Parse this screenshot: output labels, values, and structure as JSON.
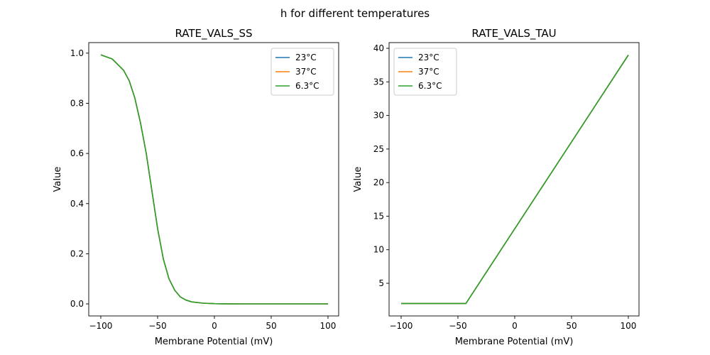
{
  "chart_data": {
    "suptitle": "h for different temperatures",
    "charts": [
      {
        "type": "line",
        "title": "RATE_VALS_SS",
        "xlabel": "Membrane Potential (mV)",
        "ylabel": "Value",
        "xlim": [
          -110.6,
          109.4
        ],
        "ylim": [
          -0.048,
          1.042
        ],
        "xticks": [
          -100,
          -50,
          0,
          50,
          100
        ],
        "yticks": [
          0.0,
          0.2,
          0.4,
          0.6,
          0.8,
          1.0
        ],
        "ytick_labels": [
          "0.0",
          "0.2",
          "0.4",
          "0.6",
          "0.8",
          "1.0"
        ],
        "legend": "top-right",
        "x": [
          -100,
          -90,
          -80,
          -75,
          -70,
          -65,
          -60,
          -55,
          -50,
          -45,
          -40,
          -35,
          -30,
          -25,
          -20,
          -10,
          0,
          10,
          25,
          50,
          100
        ],
        "series": [
          {
            "name": "23°C",
            "color": "#1f77b4",
            "values": [
              0.993,
              0.977,
              0.932,
              0.89,
              0.82,
              0.72,
              0.6,
              0.45,
              0.3,
              0.18,
              0.1,
              0.055,
              0.028,
              0.015,
              0.008,
              0.003,
              0.001,
              0.0004,
              0.0001,
              0,
              0
            ]
          },
          {
            "name": "37°C",
            "color": "#ff7f0e",
            "values": [
              0.993,
              0.977,
              0.932,
              0.89,
              0.82,
              0.72,
              0.6,
              0.45,
              0.3,
              0.18,
              0.1,
              0.055,
              0.028,
              0.015,
              0.008,
              0.003,
              0.001,
              0.0004,
              0.0001,
              0,
              0
            ]
          },
          {
            "name": "6.3°C",
            "color": "#2ca02c",
            "values": [
              0.993,
              0.977,
              0.932,
              0.89,
              0.82,
              0.72,
              0.6,
              0.45,
              0.3,
              0.18,
              0.1,
              0.055,
              0.028,
              0.015,
              0.008,
              0.003,
              0.001,
              0.0004,
              0.0001,
              0,
              0
            ]
          }
        ]
      },
      {
        "type": "line",
        "title": "RATE_VALS_TAU",
        "xlabel": "Membrane Potential (mV)",
        "ylabel": "Value",
        "xlim": [
          -110.6,
          109.4
        ],
        "ylim": [
          0.136,
          40.85
        ],
        "xticks": [
          -100,
          -50,
          0,
          50,
          100
        ],
        "yticks": [
          5,
          10,
          15,
          20,
          25,
          30,
          35,
          40
        ],
        "ytick_labels": [
          "5",
          "10",
          "15",
          "20",
          "25",
          "30",
          "35",
          "40"
        ],
        "legend": "top-left",
        "x": [
          -100,
          -43,
          100
        ],
        "series": [
          {
            "name": "23°C",
            "color": "#1f77b4",
            "values": [
              2,
              2,
              39
            ]
          },
          {
            "name": "37°C",
            "color": "#ff7f0e",
            "values": [
              2,
              2,
              39
            ]
          },
          {
            "name": "6.3°C",
            "color": "#2ca02c",
            "values": [
              2,
              2,
              39
            ]
          }
        ]
      }
    ]
  }
}
